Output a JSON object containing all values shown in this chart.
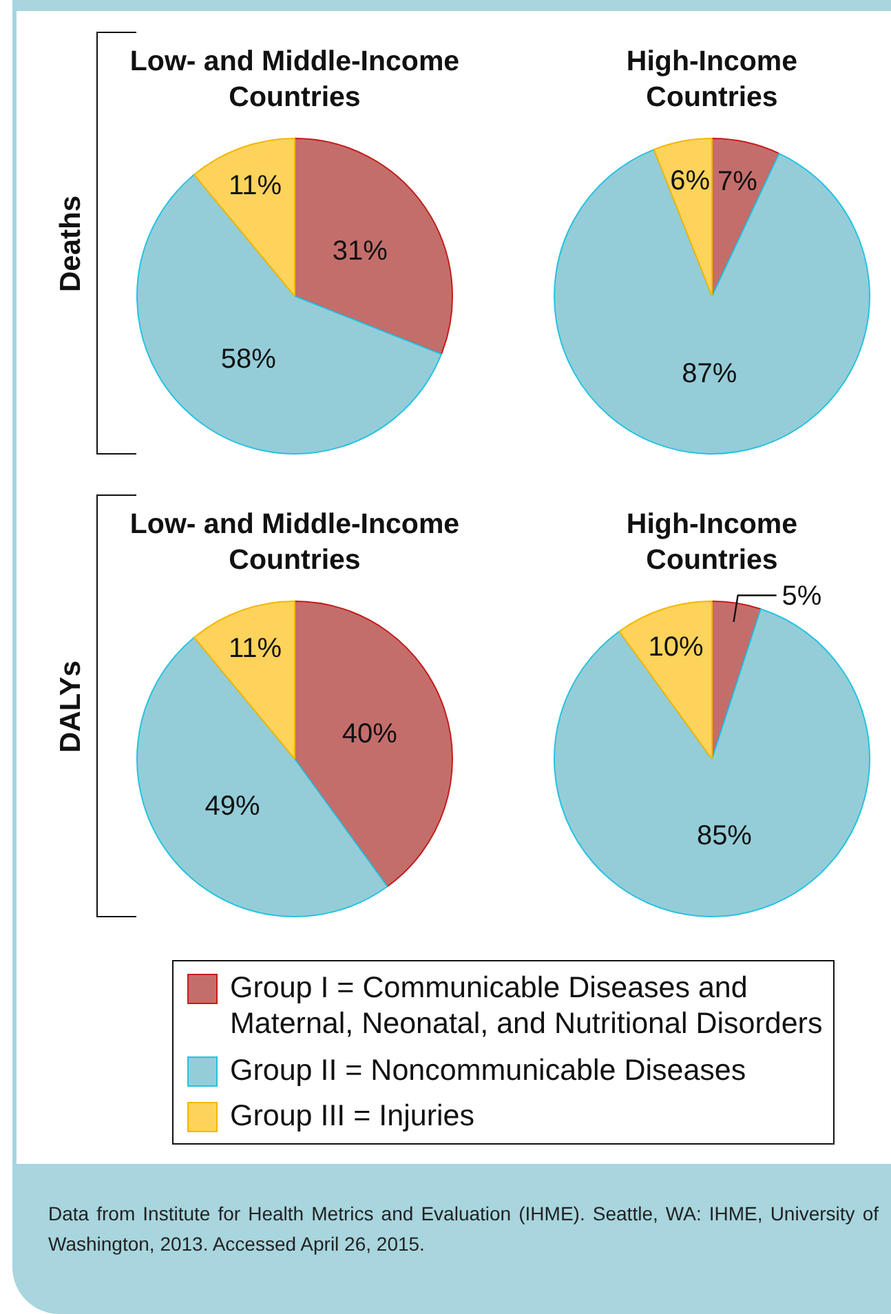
{
  "chart_data": [
    {
      "type": "pie",
      "title": "Low- and Middle-Income Countries",
      "ylabel": "Deaths",
      "categories": [
        "Group I = Communicable Diseases and Maternal, Neonatal, and Nutritional Disorders",
        "Group II = Noncommunicable Diseases",
        "Group III = Injuries"
      ],
      "values": [
        31,
        58,
        11
      ],
      "colors": [
        "#c46e6c",
        "#94cdd8",
        "#fdd35b"
      ],
      "value_labels": [
        "31%",
        "58%",
        "11%"
      ],
      "legend": "bottom"
    },
    {
      "type": "pie",
      "title": "High-Income Countries",
      "categories": [
        null,
        null,
        null
      ],
      "values": [
        7,
        87,
        6
      ],
      "colors": [
        "#c46e6c",
        "#94cdd8",
        "#fdd35b"
      ],
      "value_labels": [
        "7%",
        "87%",
        "6%"
      ]
    },
    {
      "type": "pie",
      "title": "Low- and Middle-Income Countries",
      "ylabel": "DALYs",
      "categories": [
        null,
        null,
        null
      ],
      "values": [
        40,
        49,
        11
      ],
      "colors": [
        "#c46e6c",
        "#94cdd8",
        "#fdd35b"
      ],
      "value_labels": [
        "40%",
        "49%",
        "11%"
      ]
    },
    {
      "type": "pie",
      "title": "High-Income Countries",
      "categories": [
        null,
        null,
        null
      ],
      "values": [
        5,
        85,
        10
      ],
      "colors": [
        "#c46e6c",
        "#94cdd8",
        "#fdd35b"
      ],
      "value_labels": [
        "5%",
        "85%",
        "10%"
      ],
      "annotations": [
        "Data from Institute for Health Metrics and Evaluation (IHME). Seattle, WA: IHME, University of Washington, 2013. Accessed April 26, 2015."
      ]
    }
  ]
}
